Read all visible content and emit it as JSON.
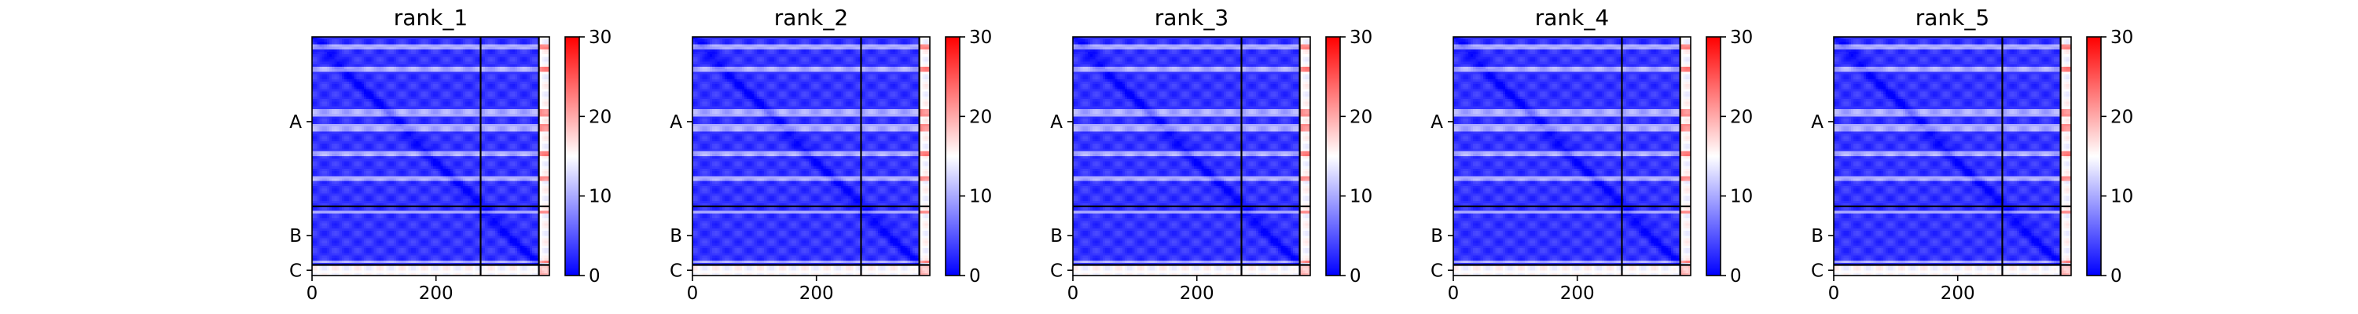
{
  "figure": {
    "colormap": {
      "name": "bwr",
      "low": "#0000ff",
      "mid": "#ffffff",
      "high": "#ff0000"
    }
  },
  "chart_data": [
    {
      "type": "heatmap",
      "title": "rank_1",
      "chains": [
        {
          "label": "A",
          "start": 0,
          "end": 272
        },
        {
          "label": "B",
          "start": 272,
          "end": 366
        },
        {
          "label": "C",
          "start": 366,
          "end": 383
        }
      ],
      "n_residues": 383,
      "xticks": [
        0,
        200
      ],
      "yticks": [
        "A",
        "B",
        "C"
      ],
      "colorbar": {
        "vmin": 0,
        "vmax": 30,
        "ticks": [
          0,
          10,
          20,
          30
        ]
      },
      "xlim": [
        0,
        383
      ]
    },
    {
      "type": "heatmap",
      "title": "rank_2",
      "chains": [
        {
          "label": "A",
          "start": 0,
          "end": 272
        },
        {
          "label": "B",
          "start": 272,
          "end": 366
        },
        {
          "label": "C",
          "start": 366,
          "end": 383
        }
      ],
      "n_residues": 383,
      "xticks": [
        0,
        200
      ],
      "yticks": [
        "A",
        "B",
        "C"
      ],
      "colorbar": {
        "vmin": 0,
        "vmax": 30,
        "ticks": [
          0,
          10,
          20,
          30
        ]
      },
      "xlim": [
        0,
        383
      ]
    },
    {
      "type": "heatmap",
      "title": "rank_3",
      "chains": [
        {
          "label": "A",
          "start": 0,
          "end": 272
        },
        {
          "label": "B",
          "start": 272,
          "end": 366
        },
        {
          "label": "C",
          "start": 366,
          "end": 383
        }
      ],
      "n_residues": 383,
      "xticks": [
        0,
        200
      ],
      "yticks": [
        "A",
        "B",
        "C"
      ],
      "colorbar": {
        "vmin": 0,
        "vmax": 30,
        "ticks": [
          0,
          10,
          20,
          30
        ]
      },
      "xlim": [
        0,
        383
      ]
    },
    {
      "type": "heatmap",
      "title": "rank_4",
      "chains": [
        {
          "label": "A",
          "start": 0,
          "end": 272
        },
        {
          "label": "B",
          "start": 272,
          "end": 366
        },
        {
          "label": "C",
          "start": 366,
          "end": 383
        }
      ],
      "n_residues": 383,
      "xticks": [
        0,
        200
      ],
      "yticks": [
        "A",
        "B",
        "C"
      ],
      "colorbar": {
        "vmin": 0,
        "vmax": 30,
        "ticks": [
          0,
          10,
          20,
          30
        ]
      },
      "xlim": [
        0,
        383
      ]
    },
    {
      "type": "heatmap",
      "title": "rank_5",
      "chains": [
        {
          "label": "A",
          "start": 0,
          "end": 272
        },
        {
          "label": "B",
          "start": 272,
          "end": 366
        },
        {
          "label": "C",
          "start": 366,
          "end": 383
        }
      ],
      "n_residues": 383,
      "xticks": [
        0,
        200
      ],
      "yticks": [
        "A",
        "B",
        "C"
      ],
      "colorbar": {
        "vmin": 0,
        "vmax": 30,
        "ticks": [
          0,
          10,
          20,
          30
        ]
      },
      "xlim": [
        0,
        383
      ]
    }
  ]
}
